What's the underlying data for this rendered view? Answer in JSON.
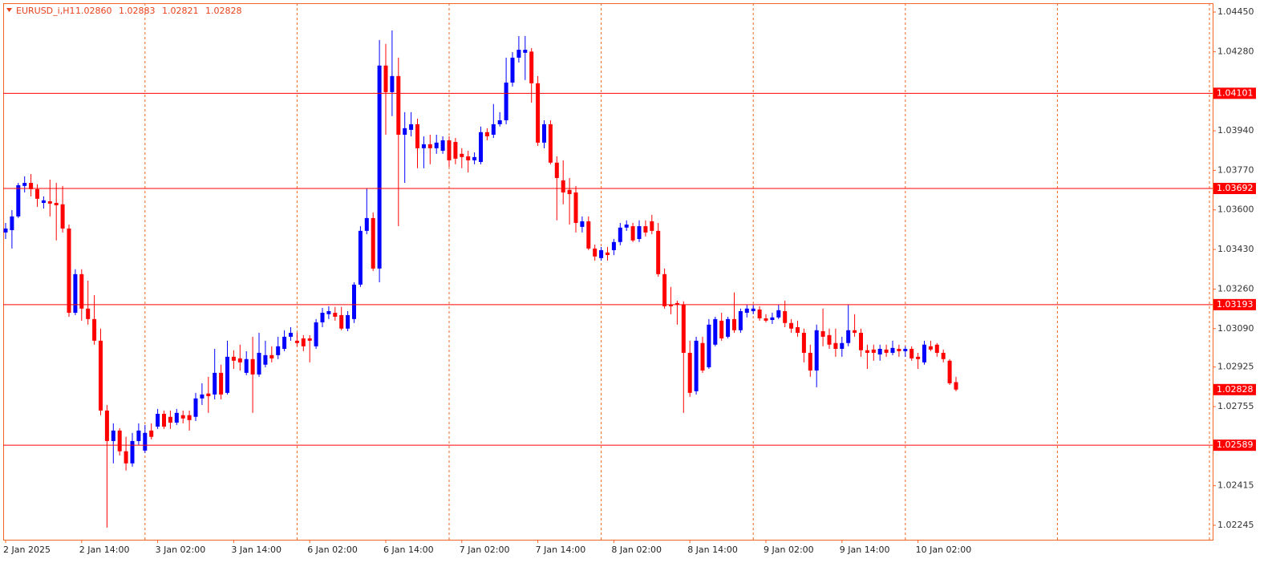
{
  "header": {
    "symbol": "EURUSD_i,H1",
    "ohlc_labels": [
      "1.02860",
      "1.02883",
      "1.02821",
      "1.02828"
    ]
  },
  "chart_data": {
    "type": "candlestick",
    "categories": [
      "2 Jan 2025",
      null,
      null,
      null,
      null,
      null,
      null,
      null,
      null,
      null,
      null,
      null,
      "2 Jan 14:00",
      null,
      null,
      null,
      null,
      null,
      null,
      null,
      null,
      null,
      null,
      null,
      "3 Jan 02:00",
      null,
      null,
      null,
      null,
      null,
      null,
      null,
      null,
      null,
      null,
      null,
      "3 Jan 14:00",
      null,
      null,
      null,
      null,
      null,
      null,
      null,
      null,
      null,
      null,
      null,
      "6 Jan 02:00",
      null,
      null,
      null,
      null,
      null,
      null,
      null,
      null,
      null,
      null,
      null,
      "6 Jan 14:00",
      null,
      null,
      null,
      null,
      null,
      null,
      null,
      null,
      null,
      null,
      null,
      "7 Jan 02:00",
      null,
      null,
      null,
      null,
      null,
      null,
      null,
      null,
      null,
      null,
      null,
      "7 Jan 14:00",
      null,
      null,
      null,
      null,
      null,
      null,
      null,
      null,
      null,
      null,
      null,
      "8 Jan 02:00",
      null,
      null,
      null,
      null,
      null,
      null,
      null,
      null,
      null,
      null,
      null,
      "8 Jan 14:00",
      null,
      null,
      null,
      null,
      null,
      null,
      null,
      null,
      null,
      null,
      null,
      "9 Jan 02:00",
      null,
      null,
      null,
      null,
      null,
      null,
      null,
      null,
      null,
      null,
      null,
      "9 Jan 14:00",
      null,
      null,
      null,
      null,
      null,
      null,
      null,
      null,
      null,
      null,
      null,
      "10 Jan 02:00",
      null,
      null,
      null,
      null,
      null,
      null
    ],
    "open": [
      1.03503,
      1.03513,
      1.03572,
      1.03703,
      1.03716,
      1.03689,
      1.0363,
      1.03637,
      1.0363,
      1.03624,
      1.0352,
      1.03158,
      1.03324,
      1.03176,
      1.03131,
      1.03038,
      1.02738,
      1.02607,
      1.02652,
      1.02563,
      1.02511,
      1.02607,
      1.02566,
      1.02652,
      1.02669,
      1.02724,
      1.02711,
      1.02686,
      1.02718,
      1.02718,
      1.02711,
      1.0279,
      1.02811,
      1.02807,
      1.029,
      1.02814,
      1.02969,
      1.02962,
      1.029,
      1.02959,
      1.02893,
      1.02935,
      1.02976,
      1.02976,
      1.03003,
      1.03055,
      1.03038,
      1.03048,
      1.03048,
      1.03014,
      1.03117,
      1.03152,
      1.03158,
      1.03148,
      1.0309,
      1.03131,
      1.03279,
      1.0351,
      1.03565,
      1.03348,
      1.0422,
      1.04106,
      1.04175,
      1.03923,
      1.03944,
      1.03968,
      1.03865,
      1.03882,
      1.03865,
      1.03854,
      1.03899,
      1.03892,
      1.03841,
      1.0383,
      1.03813,
      1.03806,
      1.03934,
      1.03923,
      1.03968,
      1.03985,
      1.04147,
      1.04254,
      1.04275,
      1.0428,
      1.04144,
      1.03889,
      1.03968,
      1.03803,
      1.03727,
      1.03686,
      1.03675,
      1.03527,
      1.03551,
      1.03434,
      1.03393,
      1.03417,
      1.03427,
      1.03462,
      1.03524,
      1.0353,
      1.03475,
      1.0353,
      1.03551,
      1.0351,
      1.03324,
      1.03193,
      1.032,
      1.03193,
      1.02986,
      1.02821,
      1.03028,
      1.02924,
      1.03021,
      1.03124,
      1.03055,
      1.03131,
      1.03083,
      1.03158,
      1.03165,
      1.03172,
      1.03134,
      1.03127,
      1.03138,
      1.03165,
      1.03114,
      1.03096,
      1.03072,
      1.02986,
      1.0291,
      1.03079,
      1.03062,
      1.03028,
      1.03003,
      1.03028,
      1.03083,
      1.03072,
      1.02997,
      1.03,
      1.02979,
      1.03,
      1.02986,
      1.03003,
      1.02993,
      1.03003,
      1.02969,
      1.02945,
      1.03014,
      1.03021,
      1.02986,
      1.02952,
      1.0286
    ],
    "high": [
      1.03544,
      1.03599,
      1.03716,
      1.03744,
      1.03754,
      1.0371,
      1.03658,
      1.0373,
      1.03716,
      1.03703,
      1.03537,
      1.03345,
      1.03345,
      1.03296,
      1.03234,
      1.0309,
      1.02762,
      1.02683,
      1.02662,
      1.02625,
      1.02642,
      1.02683,
      1.02676,
      1.02683,
      1.02745,
      1.02738,
      1.02738,
      1.02745,
      1.02738,
      1.02738,
      1.02814,
      1.02855,
      1.02883,
      1.03003,
      1.02935,
      1.03038,
      1.02997,
      1.03021,
      1.02993,
      1.03055,
      1.03072,
      1.03038,
      1.03014,
      1.03055,
      1.03083,
      1.03096,
      1.03072,
      1.03062,
      1.03062,
      1.03131,
      1.03179,
      1.03186,
      1.03183,
      1.03183,
      1.03165,
      1.03289,
      1.0353,
      1.03692,
      1.03589,
      1.0433,
      1.04313,
      1.04371,
      1.04254,
      1.0402,
      1.0402,
      1.03992,
      1.03916,
      1.03923,
      1.03923,
      1.03916,
      1.03916,
      1.03909,
      1.03865,
      1.03854,
      1.03847,
      1.03958,
      1.03951,
      1.04055,
      1.0402,
      1.04254,
      1.04278,
      1.04347,
      1.04347,
      1.04295,
      1.04175,
      1.03985,
      1.03985,
      1.0383,
      1.03813,
      1.03737,
      1.03703,
      1.03572,
      1.03572,
      1.03451,
      1.03441,
      1.03441,
      1.03475,
      1.03544,
      1.03555,
      1.03544,
      1.03555,
      1.03555,
      1.03579,
      1.03544,
      1.03348,
      1.03269,
      1.0321,
      1.03207,
      1.03038,
      1.03055,
      1.03055,
      1.03131,
      1.03141,
      1.03158,
      1.03141,
      1.03245,
      1.03176,
      1.03193,
      1.03193,
      1.03186,
      1.03152,
      1.03158,
      1.03193,
      1.0321,
      1.03131,
      1.03124,
      1.0309,
      1.03021,
      1.03107,
      1.03176,
      1.0309,
      1.0309,
      1.03055,
      1.03193,
      1.03152,
      1.0309,
      1.03021,
      1.03021,
      1.03021,
      1.03021,
      1.03038,
      1.03021,
      1.03014,
      1.03014,
      1.02986,
      1.03038,
      1.03038,
      1.03028,
      1.03,
      1.02959,
      1.02883
    ],
    "low": [
      1.03475,
      1.03434,
      1.03565,
      1.03675,
      1.03658,
      1.03613,
      1.03606,
      1.03572,
      1.03469,
      1.03503,
      1.03141,
      1.03148,
      1.03124,
      1.03107,
      1.03021,
      1.02718,
      1.02235,
      1.02511,
      1.02545,
      1.0248,
      1.02497,
      1.0259,
      1.02556,
      1.02614,
      1.02659,
      1.02659,
      1.02659,
      1.02676,
      1.02683,
      1.02652,
      1.02693,
      1.02762,
      1.02728,
      1.02786,
      1.02786,
      1.02807,
      1.02917,
      1.0291,
      1.0289,
      1.02728,
      1.02883,
      1.02924,
      1.02945,
      1.02959,
      1.02993,
      1.03038,
      1.03014,
      1.02993,
      1.02945,
      1.03003,
      1.03096,
      1.03131,
      1.03124,
      1.03083,
      1.03079,
      1.03114,
      1.03269,
      1.03496,
      1.03338,
      1.03289,
      1.03923,
      1.04003,
      1.0353,
      1.03716,
      1.03916,
      1.03779,
      1.03779,
      1.03796,
      1.03841,
      1.03841,
      1.03785,
      1.03796,
      1.03779,
      1.03761,
      1.03796,
      1.03796,
      1.03899,
      1.03909,
      1.03958,
      1.03968,
      1.0413,
      1.04233,
      1.04158,
      1.04061,
      1.03875,
      1.03865,
      1.03796,
      1.03555,
      1.03624,
      1.03537,
      1.03503,
      1.03503,
      1.03427,
      1.03382,
      1.03382,
      1.03382,
      1.03406,
      1.03448,
      1.0351,
      1.03462,
      1.03462,
      1.03486,
      1.03496,
      1.03313,
      1.03176,
      1.03152,
      1.03107,
      1.02728,
      1.02797,
      1.02807,
      1.029,
      1.02917,
      1.03014,
      1.03038,
      1.03048,
      1.03072,
      1.03072,
      1.03138,
      1.03152,
      1.03124,
      1.03117,
      1.0311,
      1.03131,
      1.03096,
      1.03072,
      1.03055,
      1.02945,
      1.02883,
      1.02838,
      1.03014,
      1.03003,
      1.02969,
      1.02969,
      1.03014,
      1.03055,
      1.02969,
      1.02917,
      1.02952,
      1.02952,
      1.02969,
      1.02976,
      1.02969,
      1.02969,
      1.02952,
      1.02917,
      1.02935,
      1.02993,
      1.02969,
      1.02945,
      1.02848,
      1.02821
    ],
    "close": [
      1.0352,
      1.03572,
      1.03706,
      1.03716,
      1.03689,
      1.03648,
      1.03641,
      1.03627,
      1.0362,
      1.0352,
      1.03158,
      1.03324,
      1.03176,
      1.03131,
      1.03038,
      1.02738,
      1.02607,
      1.02652,
      1.02563,
      1.02511,
      1.02607,
      1.02652,
      1.02642,
      1.02625,
      1.02724,
      1.02669,
      1.02686,
      1.02728,
      1.02704,
      1.02697,
      1.0279,
      1.02807,
      1.028,
      1.029,
      1.02807,
      1.02969,
      1.02952,
      1.02945,
      1.02959,
      1.02893,
      1.02986,
      1.02976,
      1.02962,
      1.03014,
      1.03055,
      1.03072,
      1.03028,
      1.03014,
      1.03038,
      1.03117,
      1.03158,
      1.03165,
      1.03141,
      1.0309,
      1.03148,
      1.03279,
      1.0351,
      1.03565,
      1.03348,
      1.0422,
      1.04106,
      1.04175,
      1.03923,
      1.03951,
      1.03968,
      1.03865,
      1.03882,
      1.03865,
      1.03889,
      1.03899,
      1.03813,
      1.0382,
      1.03827,
      1.03813,
      1.03827,
      1.03934,
      1.03916,
      1.03968,
      1.03985,
      1.04147,
      1.04254,
      1.04288,
      1.04288,
      1.04144,
      1.03889,
      1.03968,
      1.03803,
      1.03737,
      1.03675,
      1.03668,
      1.03544,
      1.03551,
      1.03434,
      1.034,
      1.03427,
      1.03406,
      1.03462,
      1.03524,
      1.03537,
      1.03469,
      1.0353,
      1.03503,
      1.0351,
      1.03324,
      1.03186,
      1.03186,
      1.03193,
      1.02986,
      1.02814,
      1.03038,
      1.0291,
      1.03107,
      1.03131,
      1.03048,
      1.03131,
      1.03083,
      1.03165,
      1.03176,
      1.03176,
      1.03134,
      1.03124,
      1.03138,
      1.03169,
      1.03114,
      1.0309,
      1.03072,
      1.02986,
      1.0291,
      1.03083,
      1.03055,
      1.03021,
      1.03003,
      1.03028,
      1.03083,
      1.03072,
      1.02997,
      1.02986,
      1.02986,
      1.03003,
      1.02986,
      1.03007,
      1.02993,
      1.03003,
      1.02962,
      1.02959,
      1.03021,
      1.03,
      1.02986,
      1.02959,
      1.02855,
      1.02828
    ],
    "up_color": "#0000ff",
    "down_color": "#ff0000",
    "ylim": [
      1.02183,
      1.04488
    ],
    "yticks": [
      {
        "value": 1.0445,
        "label": "1.04450"
      },
      {
        "value": 1.0428,
        "label": "1.04280"
      },
      {
        "value": 1.0394,
        "label": "1.03940"
      },
      {
        "value": 1.0377,
        "label": "1.03770"
      },
      {
        "value": 1.036,
        "label": "1.03600"
      },
      {
        "value": 1.0343,
        "label": "1.03430"
      },
      {
        "value": 1.0326,
        "label": "1.03260"
      },
      {
        "value": 1.0309,
        "label": "1.03090"
      },
      1.02925,
      1.02755,
      1.02415,
      1.02245
    ],
    "levels": [
      1.04101,
      1.03692,
      1.03193,
      1.02589
    ],
    "level_color": "#ff0000",
    "grid": true,
    "grid_color": "#f26522"
  }
}
